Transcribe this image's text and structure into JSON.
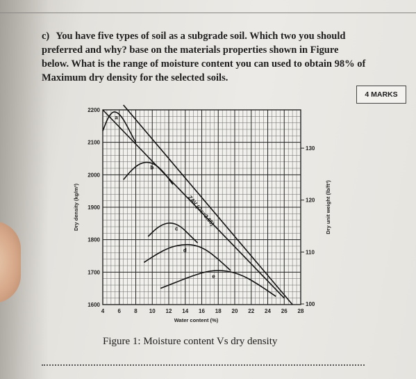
{
  "question": {
    "letter": "c)",
    "text": "You have five types of soil as a subgrade soil. Which two you should preferred and why? base on the materials properties shown in Figure below. What is the range of moisture content you can used to obtain 98% of Maximum dry density for the selected soils."
  },
  "marks": "4 MARKS",
  "caption": "Figure 1: Moisture content Vs dry density",
  "chart_data": {
    "type": "line",
    "xlabel": "Water content (%)",
    "ylabel": "Dry density (kg/m³)",
    "ylabel_right": "Dry unit weight (lb/ft³)",
    "xlim": [
      4,
      28
    ],
    "ylim": [
      1600,
      2200
    ],
    "x_ticks": [
      "4",
      "6",
      "8",
      "10",
      "12",
      "14",
      "16",
      "18",
      "20",
      "22",
      "24",
      "26",
      "28"
    ],
    "y_ticks": [
      "1600",
      "1700",
      "1800",
      "1900",
      "2000",
      "2100",
      "2200"
    ],
    "right_ticks": [
      {
        "label": "100",
        "kg": 1602
      },
      {
        "label": "110",
        "kg": 1762
      },
      {
        "label": "120",
        "kg": 1922
      },
      {
        "label": "130",
        "kg": 2082
      }
    ],
    "zav_label": "ZAV (Gs=2.65)",
    "series": [
      {
        "name": "a",
        "x": [
          4.0,
          4.6,
          5.2,
          5.8,
          6.4,
          7.0,
          7.6,
          8.0
        ],
        "y": [
          2135,
          2175,
          2195,
          2192,
          2175,
          2148,
          2118,
          2100
        ]
      },
      {
        "name": "b",
        "x": [
          6.5,
          7.5,
          8.5,
          9.5,
          10.5,
          11.5,
          12.5
        ],
        "y": [
          1985,
          2015,
          2035,
          2040,
          2030,
          2005,
          1970
        ]
      },
      {
        "name": "c",
        "x": [
          9.5,
          10.5,
          11.5,
          12.5,
          13.5,
          14.5,
          15.5
        ],
        "y": [
          1810,
          1835,
          1850,
          1852,
          1840,
          1815,
          1790
        ]
      },
      {
        "name": "d",
        "x": [
          9.0,
          10.5,
          12.0,
          13.5,
          15.0,
          16.5,
          18.0,
          19.5
        ],
        "y": [
          1730,
          1755,
          1775,
          1785,
          1785,
          1770,
          1740,
          1705
        ]
      },
      {
        "name": "e",
        "x": [
          11.0,
          13.0,
          15.0,
          17.0,
          19.0,
          21.0,
          23.0,
          25.0
        ],
        "y": [
          1650,
          1670,
          1690,
          1705,
          1705,
          1690,
          1660,
          1625
        ]
      }
    ],
    "zav_line": {
      "x": [
        6.5,
        27.0
      ],
      "y": [
        2215,
        1600
      ]
    },
    "zav_line_2": {
      "x": [
        4.0,
        26.0
      ],
      "y": [
        2200,
        1620
      ]
    },
    "grid": true
  }
}
